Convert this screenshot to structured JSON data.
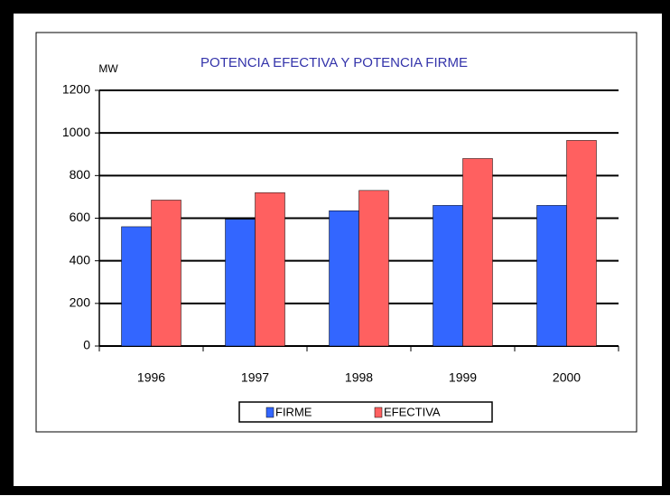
{
  "chart_data": {
    "type": "bar",
    "title": "POTENCIA EFECTIVA Y POTENCIA FIRME",
    "y_label": "MW",
    "categories": [
      "1996",
      "1997",
      "1998",
      "1999",
      "2000"
    ],
    "series": [
      {
        "name": "FIRME",
        "color": "#3366ff",
        "values": [
          560,
          595,
          635,
          660,
          660
        ]
      },
      {
        "name": "EFECTIVA",
        "color": "#ff6060",
        "values": [
          685,
          720,
          730,
          880,
          965
        ]
      }
    ],
    "ylim": [
      0,
      1200
    ],
    "yticks": [
      0,
      200,
      400,
      600,
      800,
      1000,
      1200
    ],
    "grid": true,
    "legend": "bottom"
  }
}
